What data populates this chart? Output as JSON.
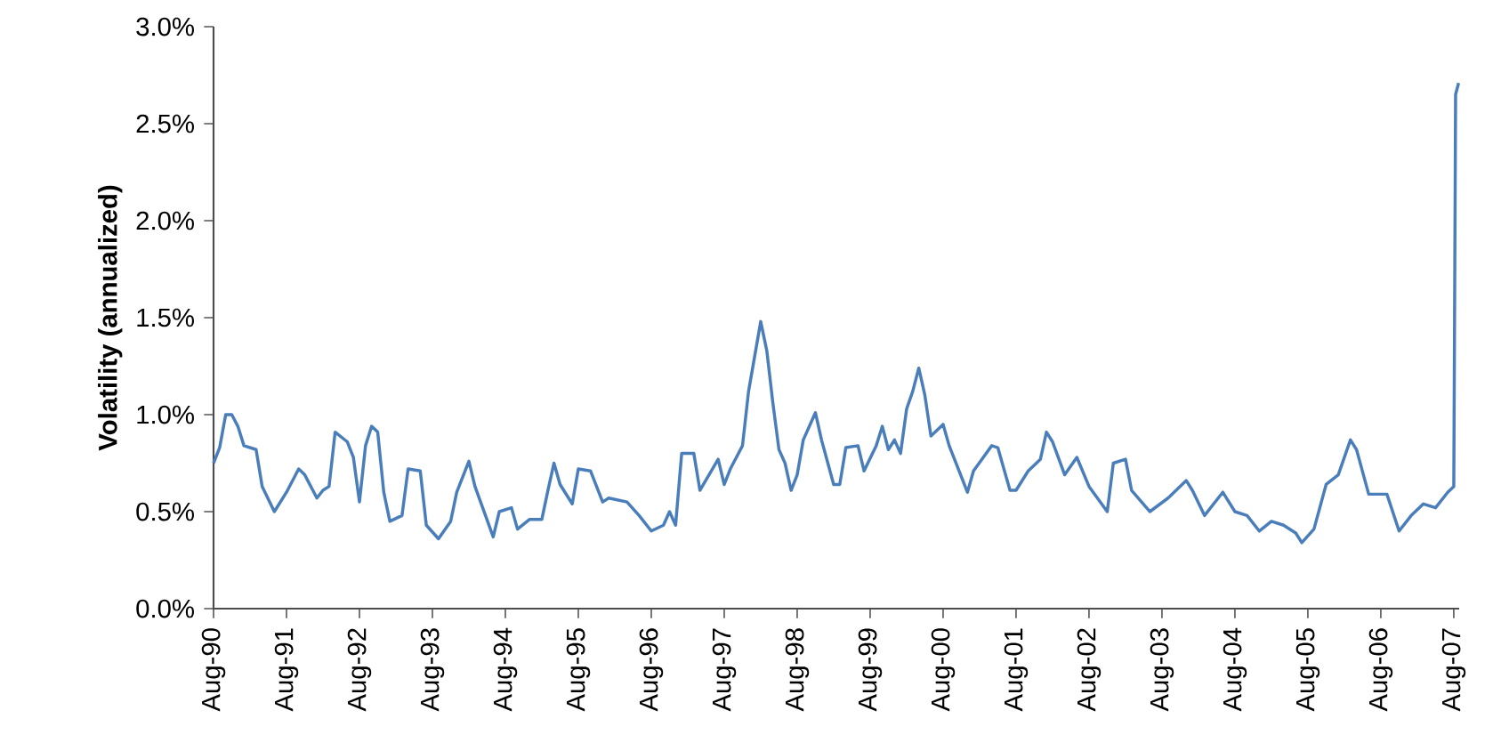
{
  "chart_data": {
    "type": "line",
    "ylabel": "Volatility (annualized)",
    "x": [
      "1990-08",
      "1990-09",
      "1990-10",
      "1990-11",
      "1990-12",
      "1991-01",
      "1991-03",
      "1991-04",
      "1991-06",
      "1991-08",
      "1991-10",
      "1991-11",
      "1992-01",
      "1992-02",
      "1992-03",
      "1992-04",
      "1992-06",
      "1992-07",
      "1992-08",
      "1992-09",
      "1992-10",
      "1992-11",
      "1992-12",
      "1993-01",
      "1993-03",
      "1993-04",
      "1993-06",
      "1993-07",
      "1993-09",
      "1993-11",
      "1993-12",
      "1994-02",
      "1994-03",
      "1994-06",
      "1994-07",
      "1994-09",
      "1994-10",
      "1994-12",
      "1995-02",
      "1995-03",
      "1995-04",
      "1995-05",
      "1995-07",
      "1995-08",
      "1995-10",
      "1995-12",
      "1996-01",
      "1996-04",
      "1996-06",
      "1996-08",
      "1996-10",
      "1996-11",
      "1996-12",
      "1997-01",
      "1997-03",
      "1997-04",
      "1997-07",
      "1997-08",
      "1997-09",
      "1997-11",
      "1997-12",
      "1998-01",
      "1998-02",
      "1998-03",
      "1998-04",
      "1998-05",
      "1998-06",
      "1998-07",
      "1998-08",
      "1998-09",
      "1998-11",
      "1998-12",
      "1999-02",
      "1999-03",
      "1999-04",
      "1999-06",
      "1999-07",
      "1999-09",
      "1999-10",
      "1999-11",
      "1999-12",
      "2000-01",
      "2000-02",
      "2000-03",
      "2000-04",
      "2000-05",
      "2000-06",
      "2000-08",
      "2000-09",
      "2000-12",
      "2001-01",
      "2001-04",
      "2001-05",
      "2001-07",
      "2001-08",
      "2001-10",
      "2001-12",
      "2002-01",
      "2002-02",
      "2002-04",
      "2002-06",
      "2002-08",
      "2002-11",
      "2002-12",
      "2003-02",
      "2003-03",
      "2003-06",
      "2003-09",
      "2003-12",
      "2004-01",
      "2004-03",
      "2004-06",
      "2004-08",
      "2004-10",
      "2004-12",
      "2005-02",
      "2005-04",
      "2005-06",
      "2005-07",
      "2005-09",
      "2005-11",
      "2006-01",
      "2006-03",
      "2006-04",
      "2006-06",
      "2006-09",
      "2006-11",
      "2007-01",
      "2007-03",
      "2007-05",
      "2007-07",
      "2007-08",
      "2007-08-10",
      "2007-08-25"
    ],
    "series": [
      {
        "color": "#4a7ebb",
        "values": [
          0.75,
          0.83,
          1.0,
          1.0,
          0.94,
          0.84,
          0.82,
          0.63,
          0.5,
          0.6,
          0.72,
          0.69,
          0.57,
          0.61,
          0.63,
          0.91,
          0.86,
          0.78,
          0.55,
          0.84,
          0.94,
          0.91,
          0.6,
          0.45,
          0.48,
          0.72,
          0.71,
          0.43,
          0.36,
          0.45,
          0.6,
          0.76,
          0.63,
          0.37,
          0.5,
          0.52,
          0.41,
          0.46,
          0.46,
          0.61,
          0.75,
          0.64,
          0.54,
          0.72,
          0.71,
          0.55,
          0.57,
          0.55,
          0.48,
          0.4,
          0.43,
          0.5,
          0.43,
          0.8,
          0.8,
          0.61,
          0.77,
          0.64,
          0.72,
          0.84,
          1.12,
          1.3,
          1.48,
          1.33,
          1.06,
          0.82,
          0.75,
          0.61,
          0.69,
          0.87,
          1.01,
          0.87,
          0.64,
          0.64,
          0.83,
          0.84,
          0.71,
          0.84,
          0.94,
          0.82,
          0.87,
          0.8,
          1.03,
          1.12,
          1.24,
          1.1,
          0.89,
          0.95,
          0.84,
          0.6,
          0.71,
          0.84,
          0.83,
          0.61,
          0.61,
          0.71,
          0.77,
          0.91,
          0.86,
          0.69,
          0.78,
          0.63,
          0.5,
          0.75,
          0.77,
          0.61,
          0.5,
          0.57,
          0.66,
          0.61,
          0.48,
          0.6,
          0.5,
          0.48,
          0.4,
          0.45,
          0.43,
          0.39,
          0.34,
          0.41,
          0.64,
          0.69,
          0.87,
          0.82,
          0.59,
          0.59,
          0.4,
          0.48,
          0.54,
          0.52,
          0.6,
          0.63,
          2.65,
          2.71
        ]
      }
    ],
    "xlim": [
      "1990-08",
      "2007-08-28"
    ],
    "xticks": [
      {
        "value": "1990-08",
        "label": "Aug-90"
      },
      {
        "value": "1991-08",
        "label": "Aug-91"
      },
      {
        "value": "1992-08",
        "label": "Aug-92"
      },
      {
        "value": "1993-08",
        "label": "Aug-93"
      },
      {
        "value": "1994-08",
        "label": "Aug-94"
      },
      {
        "value": "1995-08",
        "label": "Aug-95"
      },
      {
        "value": "1996-08",
        "label": "Aug-96"
      },
      {
        "value": "1997-08",
        "label": "Aug-97"
      },
      {
        "value": "1998-08",
        "label": "Aug-98"
      },
      {
        "value": "1999-08",
        "label": "Aug-99"
      },
      {
        "value": "2000-08",
        "label": "Aug-00"
      },
      {
        "value": "2001-08",
        "label": "Aug-01"
      },
      {
        "value": "2002-08",
        "label": "Aug-02"
      },
      {
        "value": "2003-08",
        "label": "Aug-03"
      },
      {
        "value": "2004-08",
        "label": "Aug-04"
      },
      {
        "value": "2005-08",
        "label": "Aug-05"
      },
      {
        "value": "2006-08",
        "label": "Aug-06"
      },
      {
        "value": "2007-08",
        "label": "Aug-07"
      }
    ],
    "ylim": [
      0,
      3
    ],
    "yticks": [
      {
        "value": 0,
        "label": "0.0%"
      },
      {
        "value": 0.5,
        "label": "0.5%"
      },
      {
        "value": 1.0,
        "label": "1.0%"
      },
      {
        "value": 1.5,
        "label": "1.5%"
      },
      {
        "value": 2.0,
        "label": "2.0%"
      },
      {
        "value": 2.5,
        "label": "2.5%"
      },
      {
        "value": 3.0,
        "label": "3.0%"
      }
    ],
    "grid": false,
    "marker": "none",
    "line_style": "solid"
  }
}
